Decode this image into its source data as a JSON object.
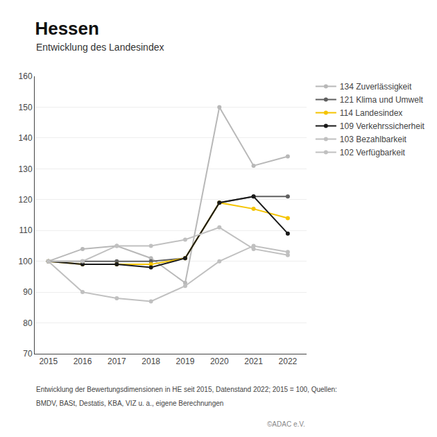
{
  "chart_data": {
    "type": "line",
    "title": "Hessen",
    "subtitle": "Entwicklung des Landesindex",
    "x": [
      2015,
      2016,
      2017,
      2018,
      2019,
      2020,
      2021,
      2022
    ],
    "series": [
      {
        "name": "134 Zuverlässigkeit",
        "color": "#b8b8b8",
        "values": [
          100,
          104,
          105,
          101,
          93,
          150,
          131,
          134
        ]
      },
      {
        "name": "121 Klima und Umwelt",
        "color": "#606060",
        "values": [
          100,
          100,
          100,
          100,
          101,
          119,
          121,
          121
        ]
      },
      {
        "name": "114 Landesindex",
        "color": "#f5c400",
        "values": [
          100,
          99,
          99,
          99,
          101,
          119,
          117,
          114
        ]
      },
      {
        "name": "109 Verkehrssicherheit",
        "color": "#1a1a1a",
        "values": [
          100,
          99,
          99,
          98,
          101,
          119,
          121,
          109
        ]
      },
      {
        "name": "103 Bezahlbarkeit",
        "color": "#c0c0c0",
        "values": [
          100,
          90,
          88,
          87,
          92,
          100,
          105,
          103
        ]
      },
      {
        "name": "102 Verfügbarkeit",
        "color": "#c0c0c0",
        "values": [
          100,
          100,
          105,
          105,
          107,
          111,
          104,
          102
        ]
      }
    ],
    "xlim": [
      2014.6,
      2022.55
    ],
    "xticks": [
      2015,
      2016,
      2017,
      2018,
      2019,
      2020,
      2021,
      2022
    ],
    "ylim": [
      70,
      160
    ],
    "yticks": [
      70,
      80,
      90,
      100,
      110,
      120,
      130,
      140,
      150,
      160
    ],
    "grid": true,
    "legend": "right",
    "marker": "circle",
    "annotations": [
      "Entwicklung der Bewertungsdimensionen in HE seit 2015, Datenstand 2022; 2015 = 100, Quellen:",
      "BMDV, BASt, Destatis, KBA, VIZ u. a., eigene Berechnungen",
      "©ADAC e.V."
    ]
  }
}
